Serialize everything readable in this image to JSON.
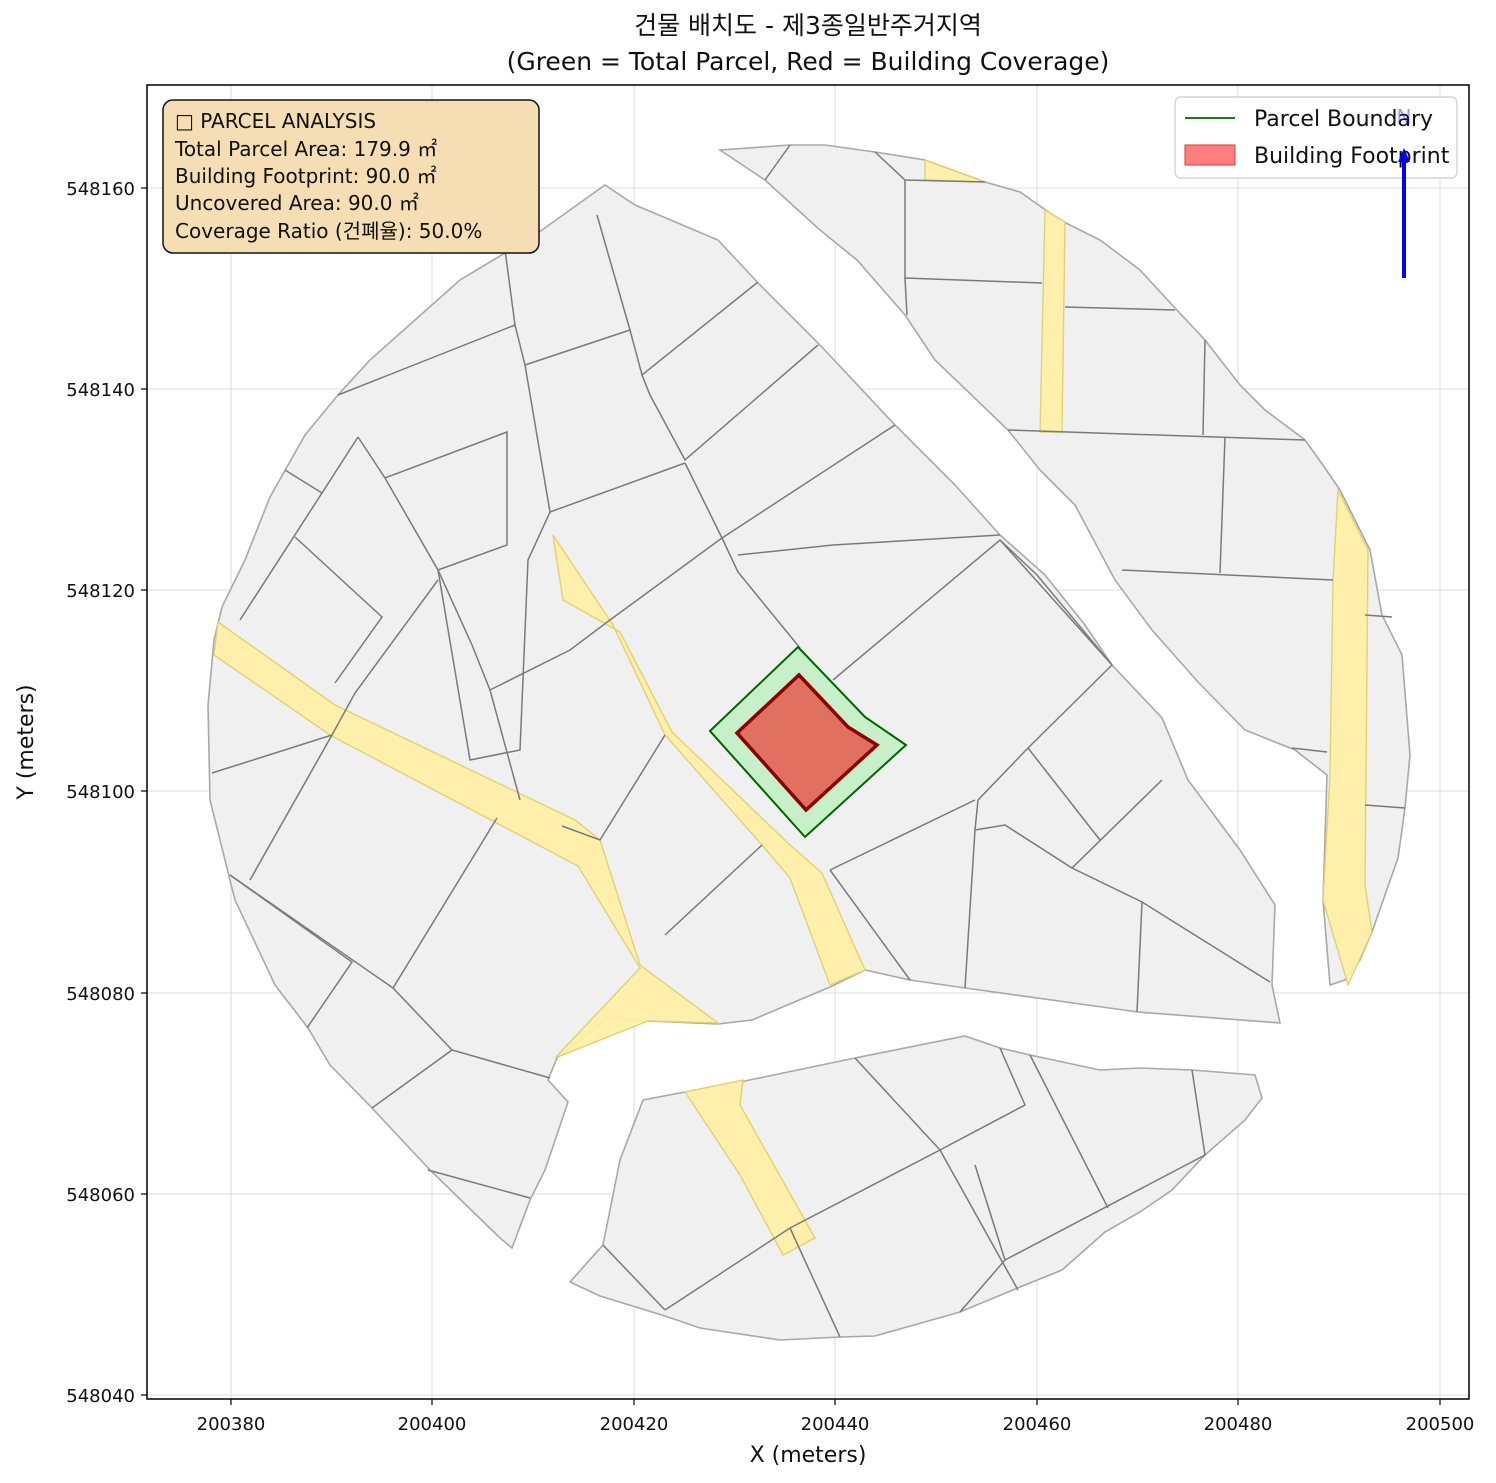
{
  "title_line1": "건물 배치도 - 제3종일반주거지역",
  "title_line2": "(Green = Total Parcel, Red = Building Coverage)",
  "xlabel": "X (meters)",
  "ylabel": "Y (meters)",
  "x_ticks": [
    "200380",
    "200400",
    "200420",
    "200440",
    "200460",
    "200480",
    "200500"
  ],
  "y_ticks": [
    "548040",
    "548060",
    "548080",
    "548100",
    "548120",
    "548140",
    "548160"
  ],
  "legend": {
    "parcel_label": "Parcel Boundary",
    "building_label": "Building Footprint",
    "parcel_color": "#006400",
    "building_color": "#ff7f7f"
  },
  "info_box": {
    "heading": "□ PARCEL ANALYSIS",
    "line_total": "Total Parcel Area: 179.9 ㎡",
    "line_building": "Building Footprint: 90.0 ㎡",
    "line_uncovered": "Uncovered Area: 90.0 ㎡",
    "line_ratio": "Coverage Ratio (건폐율): 50.0%"
  },
  "north_arrow": {
    "label": "N",
    "color": "#0000ff"
  },
  "colors": {
    "parcel_fill": "#f0f0f0",
    "road_fill": "#fff0a8",
    "target_parcel_fill": "#c8f0c8",
    "building_fill": "#e07060",
    "building_edge": "#8b0000"
  },
  "chart_data": {
    "type": "map",
    "xlim": [
      200372,
      200503
    ],
    "ylim": [
      548039,
      548170
    ],
    "target_parcel_polygon": [
      [
        200428,
        548106
      ],
      [
        200436.5,
        548114.5
      ],
      [
        200443,
        548107.5
      ],
      [
        200447,
        548104.5
      ],
      [
        200437,
        548095.5
      ]
    ],
    "building_polygon": [
      [
        200430.5,
        548106
      ],
      [
        200436.5,
        548111.5
      ],
      [
        200441.5,
        548106.5
      ],
      [
        200444,
        548104.5
      ],
      [
        200437.5,
        548098
      ]
    ],
    "statistics": {
      "total_parcel_area_m2": 179.9,
      "building_footprint_m2": 90.0,
      "uncovered_area_m2": 90.0,
      "coverage_ratio_percent": 50.0
    }
  }
}
